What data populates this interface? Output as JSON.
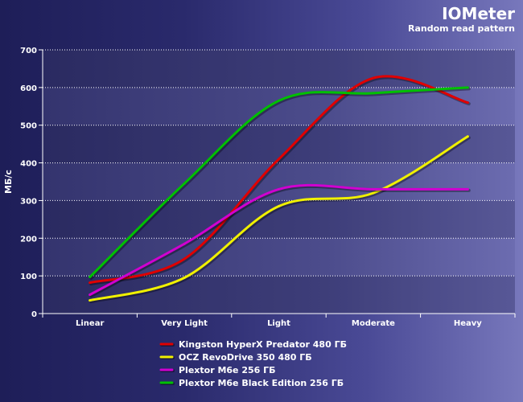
{
  "chart_data": {
    "type": "line",
    "title": "IOMeter",
    "subtitle": "Random read pattern",
    "xlabel": "",
    "ylabel": "МБ/с",
    "ylim": [
      0,
      700
    ],
    "yticks": [
      "0",
      "100",
      "200",
      "300",
      "400",
      "500",
      "600",
      "700"
    ],
    "categories": [
      "Linear",
      "Very Light",
      "Light",
      "Moderate",
      "Heavy"
    ],
    "grid": true,
    "legend_position": "bottom",
    "series": [
      {
        "name": "Kingston HyperX Predator 480 ГБ",
        "color": "#e00000",
        "values": [
          82,
          145,
          410,
          625,
          560
        ]
      },
      {
        "name": "OCZ RevoDrive 350 480 ГБ",
        "color": "#f0f000",
        "values": [
          35,
          95,
          285,
          320,
          470
        ]
      },
      {
        "name": "Plextor M6e 256 ГБ",
        "color": "#d000d0",
        "values": [
          50,
          185,
          330,
          330,
          330
        ]
      },
      {
        "name": "Plextor M6e Black Edition 256 ГБ",
        "color": "#00c000",
        "values": [
          97,
          345,
          565,
          585,
          600
        ]
      }
    ]
  }
}
